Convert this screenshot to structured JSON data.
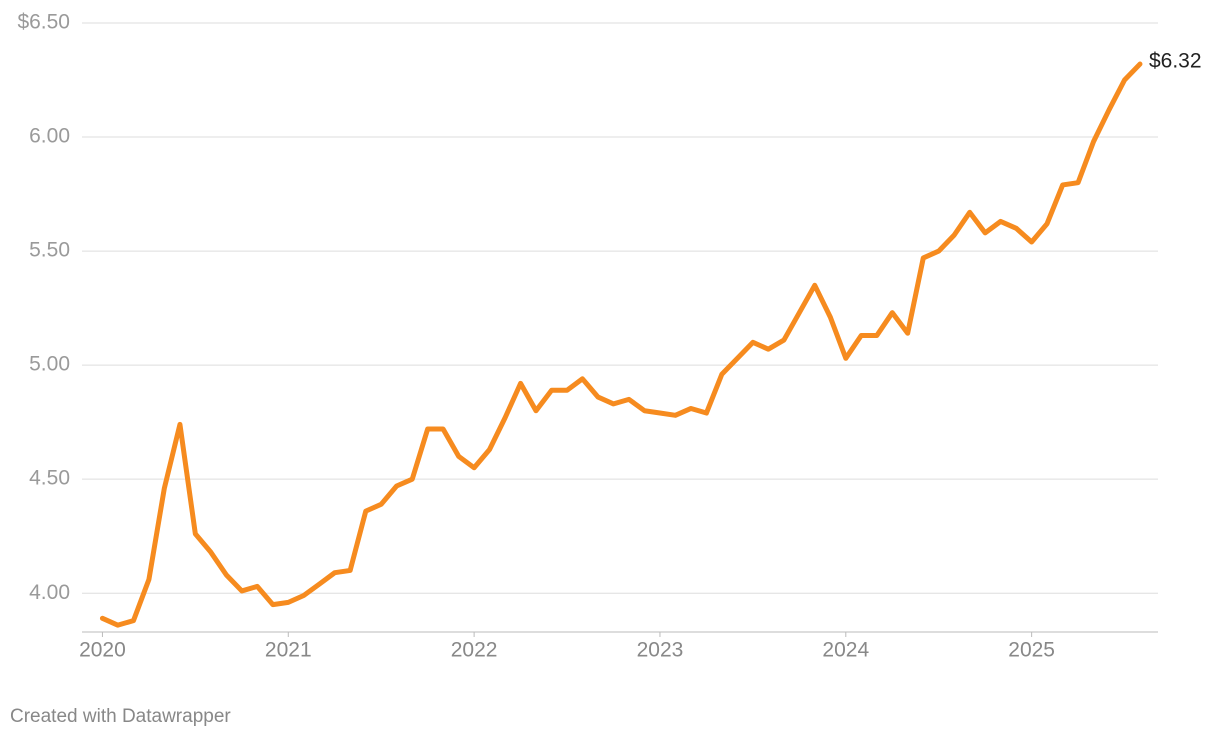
{
  "chart_data": {
    "type": "line",
    "x": [
      2020,
      2020.083,
      2020.167,
      2020.25,
      2020.333,
      2020.417,
      2020.5,
      2020.583,
      2020.667,
      2020.75,
      2020.833,
      2020.917,
      2021,
      2021.083,
      2021.167,
      2021.25,
      2021.333,
      2021.417,
      2021.5,
      2021.583,
      2021.667,
      2021.75,
      2021.833,
      2021.917,
      2022,
      2022.083,
      2022.167,
      2022.25,
      2022.333,
      2022.417,
      2022.5,
      2022.583,
      2022.667,
      2022.75,
      2022.833,
      2022.917,
      2023,
      2023.083,
      2023.167,
      2023.25,
      2023.333,
      2023.417,
      2023.5,
      2023.583,
      2023.667,
      2023.75,
      2023.833,
      2023.917,
      2024,
      2024.083,
      2024.167,
      2024.25,
      2024.333,
      2024.417,
      2024.5,
      2024.583,
      2024.667,
      2024.75,
      2024.833,
      2024.917,
      2025,
      2025.083,
      2025.167,
      2025.25,
      2025.333,
      2025.417,
      2025.5,
      2025.583
    ],
    "series": [
      {
        "color": "#f68b1f",
        "values": [
          3.89,
          3.86,
          3.88,
          4.06,
          4.46,
          4.74,
          4.26,
          4.18,
          4.08,
          4.01,
          4.03,
          3.95,
          3.96,
          3.99,
          4.04,
          4.09,
          4.1,
          4.36,
          4.39,
          4.47,
          4.5,
          4.72,
          4.72,
          4.6,
          4.55,
          4.63,
          4.77,
          4.92,
          4.8,
          4.89,
          4.89,
          4.94,
          4.86,
          4.83,
          4.85,
          4.8,
          4.79,
          4.78,
          4.81,
          4.79,
          4.96,
          5.03,
          5.1,
          5.07,
          5.11,
          5.23,
          5.35,
          5.21,
          5.03,
          5.13,
          5.13,
          5.23,
          5.14,
          5.47,
          5.5,
          5.57,
          5.67,
          5.58,
          5.63,
          5.6,
          5.54,
          5.62,
          5.79,
          5.8,
          5.98,
          6.12,
          6.25,
          6.32
        ],
        "value_labels": [
          null,
          null,
          null,
          null,
          null,
          null,
          null,
          null,
          null,
          null,
          null,
          null,
          null,
          null,
          null,
          null,
          null,
          null,
          null,
          null,
          null,
          null,
          null,
          null,
          null,
          null,
          null,
          null,
          null,
          null,
          null,
          null,
          null,
          null,
          null,
          null,
          null,
          null,
          null,
          null,
          null,
          null,
          null,
          null,
          null,
          null,
          null,
          null,
          null,
          null,
          null,
          null,
          null,
          null,
          null,
          null,
          null,
          null,
          null,
          null,
          null,
          null,
          null,
          null,
          null,
          null,
          null,
          "$6.32"
        ]
      }
    ],
    "xlim": [
      2019.89,
      2025.68
    ],
    "xticks": [
      2020,
      2021,
      2022,
      2023,
      2024,
      2025
    ],
    "ylim": [
      3.83,
      6.5
    ],
    "yticks": [
      {
        "value": 4,
        "label": "4.00"
      },
      {
        "value": 4.5,
        "label": "4.50"
      },
      {
        "value": 5,
        "label": "5.00"
      },
      {
        "value": 5.5,
        "label": "5.50"
      },
      {
        "value": 6,
        "label": "6.00"
      },
      {
        "value": 6.5,
        "label": "$6.50"
      }
    ],
    "grid": true,
    "source": "Created with Datawrapper"
  }
}
